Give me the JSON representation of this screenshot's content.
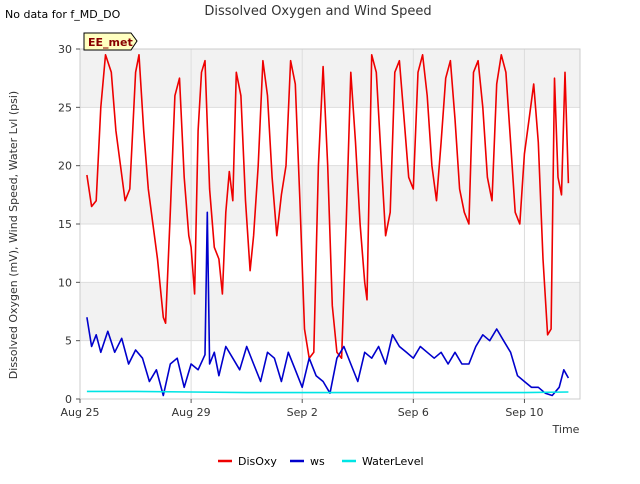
{
  "status_note": "No data for f_MD_DO",
  "site_badge": "EE_met",
  "chart_data": {
    "type": "line",
    "title": "Dissolved Oxygen and Wind Speed",
    "xlabel": "Time",
    "ylabel": "Dissolved Oxygen (mV), Wind Speed, Water Lvl (psi)",
    "x_is_date": true,
    "xlim": [
      "2023-08-25",
      "2023-09-12"
    ],
    "ylim": [
      0,
      30
    ],
    "x_ticks": [
      {
        "date": "2023-08-25",
        "label": "Aug 25"
      },
      {
        "date": "2023-08-29",
        "label": "Aug 29"
      },
      {
        "date": "2023-09-02",
        "label": "Sep 2"
      },
      {
        "date": "2023-09-06",
        "label": "Sep 6"
      },
      {
        "date": "2023-09-10",
        "label": "Sep 10"
      }
    ],
    "y_ticks": [
      0,
      5,
      10,
      15,
      20,
      25,
      30
    ],
    "grid": true,
    "background_bands": "alternating light gray horizontal bands",
    "legend_position": "bottom-center",
    "series": [
      {
        "name": "DisOxy",
        "color": "#ee0000",
        "points": [
          [
            "2023-08-25 06:00",
            19.2
          ],
          [
            "2023-08-25 10:00",
            16.5
          ],
          [
            "2023-08-25 14:00",
            17.0
          ],
          [
            "2023-08-25 18:00",
            25.0
          ],
          [
            "2023-08-25 22:00",
            29.5
          ],
          [
            "2023-08-26 03:00",
            28.0
          ],
          [
            "2023-08-26 07:00",
            23.0
          ],
          [
            "2023-08-26 11:00",
            20.0
          ],
          [
            "2023-08-26 15:00",
            17.0
          ],
          [
            "2023-08-26 19:00",
            18.0
          ],
          [
            "2023-08-27 00:00",
            28.0
          ],
          [
            "2023-08-27 03:00",
            29.5
          ],
          [
            "2023-08-27 07:00",
            23.0
          ],
          [
            "2023-08-27 11:00",
            18.0
          ],
          [
            "2023-08-27 15:00",
            15.0
          ],
          [
            "2023-08-27 19:00",
            12.0
          ],
          [
            "2023-08-28 00:00",
            7.0
          ],
          [
            "2023-08-28 02:00",
            6.5
          ],
          [
            "2023-08-28 06:00",
            16.0
          ],
          [
            "2023-08-28 10:00",
            26.0
          ],
          [
            "2023-08-28 14:00",
            27.5
          ],
          [
            "2023-08-28 18:00",
            19.0
          ],
          [
            "2023-08-28 22:00",
            14.0
          ],
          [
            "2023-08-29 00:00",
            13.0
          ],
          [
            "2023-08-29 03:00",
            9.0
          ],
          [
            "2023-08-29 06:00",
            23.0
          ],
          [
            "2023-08-29 09:00",
            28.0
          ],
          [
            "2023-08-29 12:00",
            29.0
          ],
          [
            "2023-08-29 16:00",
            18.0
          ],
          [
            "2023-08-29 20:00",
            13.0
          ],
          [
            "2023-08-30 00:00",
            12.0
          ],
          [
            "2023-08-30 03:00",
            9.0
          ],
          [
            "2023-08-30 06:00",
            16.0
          ],
          [
            "2023-08-30 09:00",
            19.5
          ],
          [
            "2023-08-30 12:00",
            17.0
          ],
          [
            "2023-08-30 15:00",
            28.0
          ],
          [
            "2023-08-30 19:00",
            26.0
          ],
          [
            "2023-08-30 23:00",
            17.0
          ],
          [
            "2023-08-31 03:00",
            11.0
          ],
          [
            "2023-08-31 06:00",
            14.0
          ],
          [
            "2023-08-31 10:00",
            20.0
          ],
          [
            "2023-08-31 14:00",
            29.0
          ],
          [
            "2023-08-31 18:00",
            26.0
          ],
          [
            "2023-08-31 22:00",
            19.0
          ],
          [
            "2023-09-01 02:00",
            14.0
          ],
          [
            "2023-09-01 06:00",
            17.5
          ],
          [
            "2023-09-01 10:00",
            20.0
          ],
          [
            "2023-09-01 14:00",
            29.0
          ],
          [
            "2023-09-01 18:00",
            27.0
          ],
          [
            "2023-09-01 22:00",
            17.0
          ],
          [
            "2023-09-02 02:00",
            6.0
          ],
          [
            "2023-09-02 06:00",
            3.5
          ],
          [
            "2023-09-02 10:00",
            4.0
          ],
          [
            "2023-09-02 14:00",
            20.0
          ],
          [
            "2023-09-02 18:00",
            28.5
          ],
          [
            "2023-09-02 22:00",
            20.0
          ],
          [
            "2023-09-03 02:00",
            8.0
          ],
          [
            "2023-09-03 06:00",
            4.0
          ],
          [
            "2023-09-03 10:00",
            3.5
          ],
          [
            "2023-09-03 14:00",
            15.0
          ],
          [
            "2023-09-03 18:00",
            28.0
          ],
          [
            "2023-09-03 22:00",
            22.0
          ],
          [
            "2023-09-04 02:00",
            15.0
          ],
          [
            "2023-09-04 06:00",
            10.0
          ],
          [
            "2023-09-04 08:00",
            8.5
          ],
          [
            "2023-09-04 12:00",
            29.5
          ],
          [
            "2023-09-04 16:00",
            28.0
          ],
          [
            "2023-09-04 20:00",
            21.0
          ],
          [
            "2023-09-05 00:00",
            14.0
          ],
          [
            "2023-09-05 04:00",
            16.0
          ],
          [
            "2023-09-05 08:00",
            28.0
          ],
          [
            "2023-09-05 12:00",
            29.0
          ],
          [
            "2023-09-05 16:00",
            24.0
          ],
          [
            "2023-09-05 20:00",
            19.0
          ],
          [
            "2023-09-06 00:00",
            18.0
          ],
          [
            "2023-09-06 04:00",
            28.0
          ],
          [
            "2023-09-06 08:00",
            29.5
          ],
          [
            "2023-09-06 12:00",
            26.0
          ],
          [
            "2023-09-06 16:00",
            20.0
          ],
          [
            "2023-09-06 20:00",
            17.0
          ],
          [
            "2023-09-07 00:00",
            22.0
          ],
          [
            "2023-09-07 04:00",
            27.5
          ],
          [
            "2023-09-07 08:00",
            29.0
          ],
          [
            "2023-09-07 12:00",
            24.0
          ],
          [
            "2023-09-07 16:00",
            18.0
          ],
          [
            "2023-09-07 20:00",
            16.0
          ],
          [
            "2023-09-08 00:00",
            15.0
          ],
          [
            "2023-09-08 04:00",
            28.0
          ],
          [
            "2023-09-08 08:00",
            29.0
          ],
          [
            "2023-09-08 12:00",
            25.0
          ],
          [
            "2023-09-08 16:00",
            19.0
          ],
          [
            "2023-09-08 20:00",
            17.0
          ],
          [
            "2023-09-09 00:00",
            27.0
          ],
          [
            "2023-09-09 04:00",
            29.5
          ],
          [
            "2023-09-09 08:00",
            28.0
          ],
          [
            "2023-09-09 12:00",
            22.0
          ],
          [
            "2023-09-09 16:00",
            16.0
          ],
          [
            "2023-09-09 20:00",
            15.0
          ],
          [
            "2023-09-10 00:00",
            21.0
          ],
          [
            "2023-09-10 04:00",
            24.0
          ],
          [
            "2023-09-10 08:00",
            27.0
          ],
          [
            "2023-09-10 12:00",
            22.0
          ],
          [
            "2023-09-10 16:00",
            12.0
          ],
          [
            "2023-09-10 20:00",
            5.5
          ],
          [
            "2023-09-10 23:00",
            6.0
          ],
          [
            "2023-09-11 02:00",
            27.5
          ],
          [
            "2023-09-11 05:00",
            19.0
          ],
          [
            "2023-09-11 08:00",
            17.5
          ],
          [
            "2023-09-11 11:00",
            28.0
          ],
          [
            "2023-09-11 14:00",
            18.5
          ]
        ]
      },
      {
        "name": "ws",
        "color": "#0000cc",
        "points": [
          [
            "2023-08-25 06:00",
            7.0
          ],
          [
            "2023-08-25 10:00",
            4.5
          ],
          [
            "2023-08-25 14:00",
            5.5
          ],
          [
            "2023-08-25 18:00",
            4.0
          ],
          [
            "2023-08-26 00:00",
            5.8
          ],
          [
            "2023-08-26 06:00",
            4.0
          ],
          [
            "2023-08-26 12:00",
            5.2
          ],
          [
            "2023-08-26 18:00",
            3.0
          ],
          [
            "2023-08-27 00:00",
            4.2
          ],
          [
            "2023-08-27 06:00",
            3.5
          ],
          [
            "2023-08-27 12:00",
            1.5
          ],
          [
            "2023-08-27 18:00",
            2.5
          ],
          [
            "2023-08-28 00:00",
            0.3
          ],
          [
            "2023-08-28 06:00",
            3.0
          ],
          [
            "2023-08-28 12:00",
            3.5
          ],
          [
            "2023-08-28 18:00",
            1.0
          ],
          [
            "2023-08-29 00:00",
            3.0
          ],
          [
            "2023-08-29 06:00",
            2.5
          ],
          [
            "2023-08-29 12:00",
            3.8
          ],
          [
            "2023-08-29 14:00",
            16.0
          ],
          [
            "2023-08-29 16:00",
            3.0
          ],
          [
            "2023-08-29 20:00",
            4.0
          ],
          [
            "2023-08-30 00:00",
            2.0
          ],
          [
            "2023-08-30 06:00",
            4.5
          ],
          [
            "2023-08-30 12:00",
            3.5
          ],
          [
            "2023-08-30 18:00",
            2.5
          ],
          [
            "2023-08-31 00:00",
            4.5
          ],
          [
            "2023-08-31 06:00",
            3.0
          ],
          [
            "2023-08-31 12:00",
            1.5
          ],
          [
            "2023-08-31 18:00",
            4.0
          ],
          [
            "2023-09-01 00:00",
            3.5
          ],
          [
            "2023-09-01 06:00",
            1.5
          ],
          [
            "2023-09-01 12:00",
            4.0
          ],
          [
            "2023-09-01 18:00",
            2.5
          ],
          [
            "2023-09-02 00:00",
            1.0
          ],
          [
            "2023-09-02 06:00",
            3.5
          ],
          [
            "2023-09-02 12:00",
            2.0
          ],
          [
            "2023-09-02 18:00",
            1.5
          ],
          [
            "2023-09-03 00:00",
            0.5
          ],
          [
            "2023-09-03 06:00",
            3.5
          ],
          [
            "2023-09-03 12:00",
            4.5
          ],
          [
            "2023-09-03 18:00",
            3.0
          ],
          [
            "2023-09-04 00:00",
            1.5
          ],
          [
            "2023-09-04 06:00",
            4.0
          ],
          [
            "2023-09-04 12:00",
            3.5
          ],
          [
            "2023-09-04 18:00",
            4.5
          ],
          [
            "2023-09-05 00:00",
            3.0
          ],
          [
            "2023-09-05 06:00",
            5.5
          ],
          [
            "2023-09-05 12:00",
            4.5
          ],
          [
            "2023-09-05 18:00",
            4.0
          ],
          [
            "2023-09-06 00:00",
            3.5
          ],
          [
            "2023-09-06 06:00",
            4.5
          ],
          [
            "2023-09-06 12:00",
            4.0
          ],
          [
            "2023-09-06 18:00",
            3.5
          ],
          [
            "2023-09-07 00:00",
            4.0
          ],
          [
            "2023-09-07 06:00",
            3.0
          ],
          [
            "2023-09-07 12:00",
            4.0
          ],
          [
            "2023-09-07 18:00",
            3.0
          ],
          [
            "2023-09-08 00:00",
            3.0
          ],
          [
            "2023-09-08 06:00",
            4.5
          ],
          [
            "2023-09-08 12:00",
            5.5
          ],
          [
            "2023-09-08 18:00",
            5.0
          ],
          [
            "2023-09-09 00:00",
            6.0
          ],
          [
            "2023-09-09 06:00",
            5.0
          ],
          [
            "2023-09-09 12:00",
            4.0
          ],
          [
            "2023-09-09 18:00",
            2.0
          ],
          [
            "2023-09-10 00:00",
            1.5
          ],
          [
            "2023-09-10 06:00",
            1.0
          ],
          [
            "2023-09-10 12:00",
            1.0
          ],
          [
            "2023-09-10 18:00",
            0.5
          ],
          [
            "2023-09-11 00:00",
            0.3
          ],
          [
            "2023-09-11 06:00",
            1.0
          ],
          [
            "2023-09-11 10:00",
            2.5
          ],
          [
            "2023-09-11 14:00",
            1.8
          ]
        ]
      },
      {
        "name": "WaterLevel",
        "color": "#00e5e5",
        "points": [
          [
            "2023-08-25 06:00",
            0.65
          ],
          [
            "2023-08-27 00:00",
            0.65
          ],
          [
            "2023-08-29 00:00",
            0.6
          ],
          [
            "2023-08-31 00:00",
            0.55
          ],
          [
            "2023-09-02 00:00",
            0.55
          ],
          [
            "2023-09-04 00:00",
            0.55
          ],
          [
            "2023-09-06 00:00",
            0.55
          ],
          [
            "2023-09-08 00:00",
            0.55
          ],
          [
            "2023-09-10 00:00",
            0.55
          ],
          [
            "2023-09-11 14:00",
            0.6
          ]
        ]
      }
    ]
  }
}
